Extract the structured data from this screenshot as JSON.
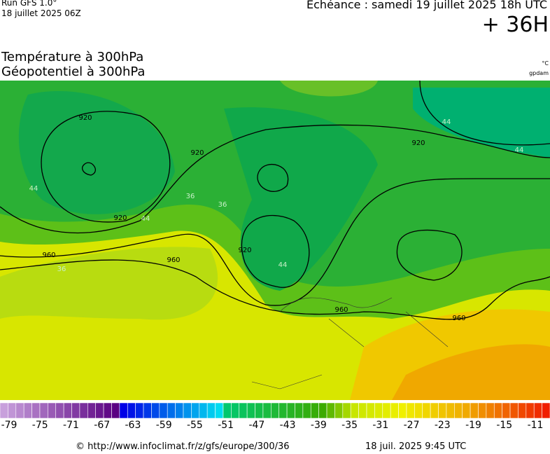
{
  "header": {
    "run": "Run GFS 1.0°",
    "run_date": "18 juillet 2025 06Z",
    "echeance": "Echéance : samedi 19 juillet 2025 18h UTC",
    "lead": "+ 36H"
  },
  "titles": {
    "line1": "Température à 300hPa",
    "line2": "Géopotentiel à 300hPa",
    "unit1": "°C",
    "unit2": "gpdam"
  },
  "map": {
    "contour_labels": [
      "920",
      "920",
      "920",
      "920",
      "920",
      "960",
      "960",
      "960",
      "960",
      "44",
      "44",
      "44",
      "44",
      "44",
      "36",
      "36",
      "36"
    ]
  },
  "colorbar": {
    "labels": [
      "-79",
      "-75",
      "-71",
      "-67",
      "-63",
      "-59",
      "-55",
      "-51",
      "-47",
      "-43",
      "-39",
      "-35",
      "-31",
      "-27",
      "-23",
      "-19",
      "-15",
      "-11"
    ]
  },
  "footer": {
    "url": "© http://www.infoclimat.fr/z/gfs/europe/300/36",
    "date": "18 juil. 2025  9:45 UTC"
  }
}
